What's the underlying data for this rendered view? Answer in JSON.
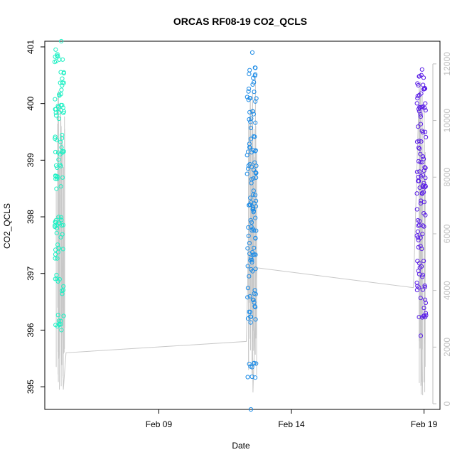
{
  "chart_data": {
    "type": "scatter",
    "title": "ORCAS RF08-19 CO2_QCLS",
    "xlabel": "Date",
    "ylabel": "CO2_QCLS",
    "x_ticks": [
      "Feb 09",
      "Feb 14",
      "Feb 19"
    ],
    "y_ticks": [
      "395",
      "396",
      "397",
      "398",
      "399",
      "400",
      "401"
    ],
    "y2_ticks": [
      "0",
      "2000",
      "4000",
      "6000",
      "8000",
      "10000",
      "12000"
    ],
    "y_range": [
      394.6,
      401.1
    ],
    "y2_range": [
      -200,
      12800
    ],
    "x_range_days_feb": [
      4.7,
      19.6
    ],
    "grid": false,
    "legend": "none",
    "colors": {
      "feb05": "#1ef0c4",
      "feb12": "#1e8ce6",
      "feb18": "#5a1ee6",
      "altitude_line": "#c8c8c8",
      "right_axis": "#bebebe"
    },
    "series": [
      {
        "date": "Feb 05",
        "day": 5.25,
        "co2_max": 401.1,
        "co2_min": 396.0,
        "co2_levels": [
          400.8,
          400.4,
          400.0,
          399.8,
          399.3,
          399.0,
          398.6,
          398.0,
          397.8,
          397.4,
          396.8,
          396.1
        ]
      },
      {
        "date": "Feb 12",
        "day": 12.5,
        "co2_max": 400.9,
        "co2_min": 394.6,
        "co2_levels": [
          400.5,
          400.1,
          399.7,
          399.3,
          399.0,
          398.7,
          398.3,
          398.1,
          397.8,
          397.5,
          397.1,
          396.6,
          396.3,
          395.3
        ]
      },
      {
        "date": "Feb 18",
        "day": 18.9,
        "co2_max": 400.6,
        "co2_min": 395.9,
        "co2_levels": [
          400.4,
          400.1,
          399.8,
          399.5,
          399.1,
          398.8,
          398.6,
          398.4,
          398.0,
          397.6,
          397.1,
          396.7,
          396.4
        ]
      }
    ],
    "altitude_trace": {
      "day": [
        5.25,
        5.3,
        5.4,
        5.5,
        12.3,
        12.35,
        12.45,
        12.55,
        12.7,
        18.6,
        18.8,
        18.95
      ],
      "alt": [
        500,
        10500,
        500,
        1800,
        2200,
        4300,
        10800,
        400,
        4800,
        4100,
        10500,
        300
      ]
    }
  }
}
